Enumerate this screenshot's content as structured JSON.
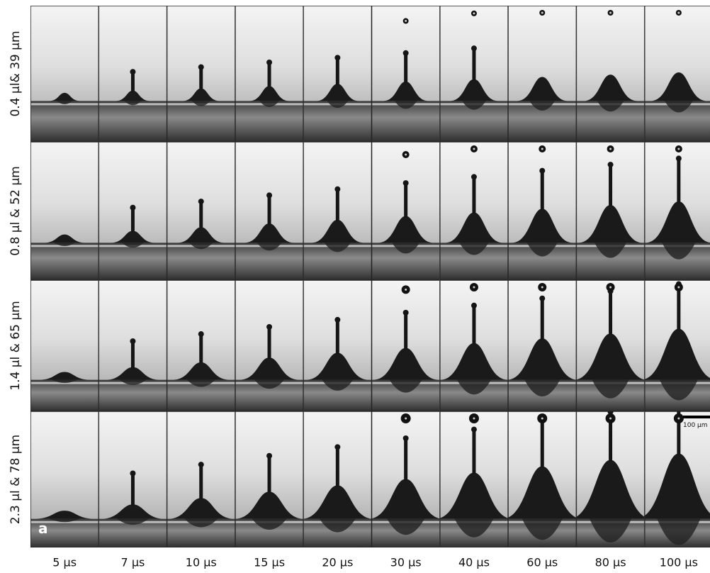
{
  "figure": {
    "row_labels": [
      "0.4 µl& 39 µm",
      "0.8 µl & 52 µm",
      "1.4 µl & 65 µm",
      "2.3 µl & 78 µm"
    ],
    "column_labels": [
      "5 µs",
      "7 µs",
      "10 µs",
      "15 µs",
      "20 µs",
      "30 µs",
      "40 µs",
      "60 µs",
      "80 µs",
      "100 µs"
    ],
    "panel_label": "a",
    "scale_bar_label": "100 µm"
  }
}
